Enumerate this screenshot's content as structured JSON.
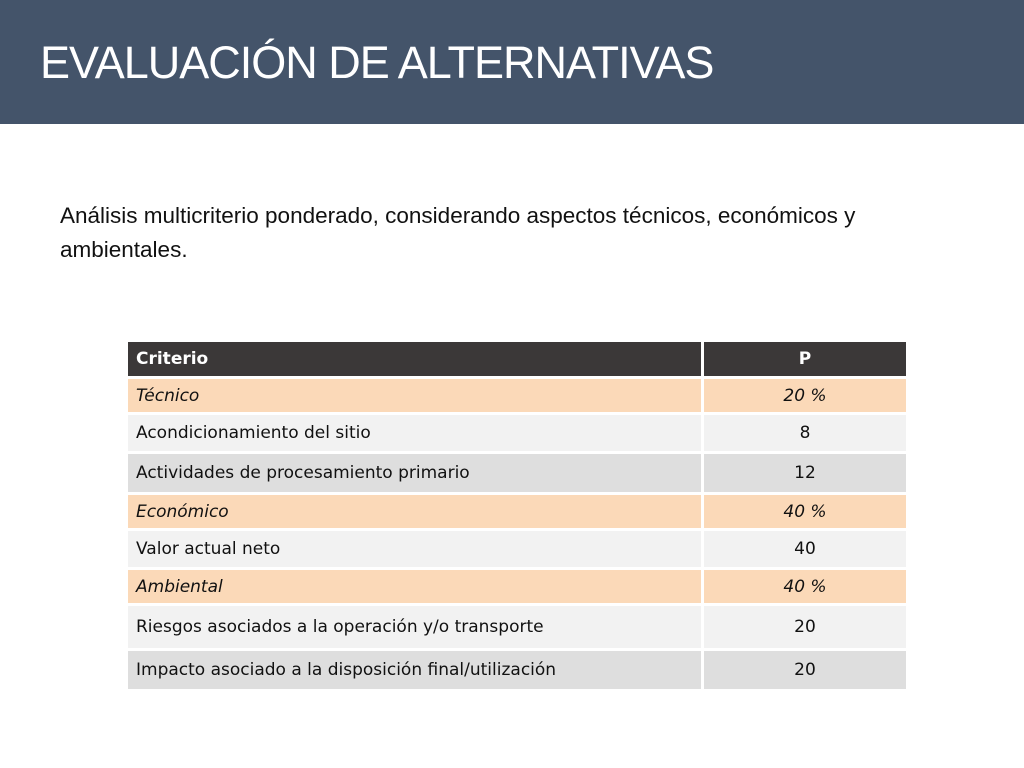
{
  "slide": {
    "title": "EVALUACIÓN DE ALTERNATIVAS",
    "subtitle": "Análisis multicriterio ponderado, considerando aspectos técnicos, económicos y ambientales.",
    "colors": {
      "title_bar": "#44546a",
      "table_header": "#3b3838",
      "category_row": "#fbd9b8",
      "row_light": "#f2f2f2",
      "row_dark": "#dedede"
    }
  },
  "table": {
    "headers": [
      "Criterio",
      "P"
    ],
    "rows": [
      {
        "type": "category",
        "criterio": "Técnico",
        "p": "20 %"
      },
      {
        "type": "item",
        "criterio": "Acondicionamiento del sitio",
        "p": "8"
      },
      {
        "type": "item",
        "criterio": "Actividades de procesamiento primario",
        "p": "12"
      },
      {
        "type": "category",
        "criterio": "Económico",
        "p": "40 %"
      },
      {
        "type": "item",
        "criterio": "Valor actual neto",
        "p": "40"
      },
      {
        "type": "category",
        "criterio": "Ambiental",
        "p": "40 %"
      },
      {
        "type": "item",
        "criterio": "Riesgos asociados a la operación y/o transporte",
        "p": "20"
      },
      {
        "type": "item",
        "criterio": "Impacto asociado a la disposición final/utilización",
        "p": "20"
      }
    ]
  }
}
